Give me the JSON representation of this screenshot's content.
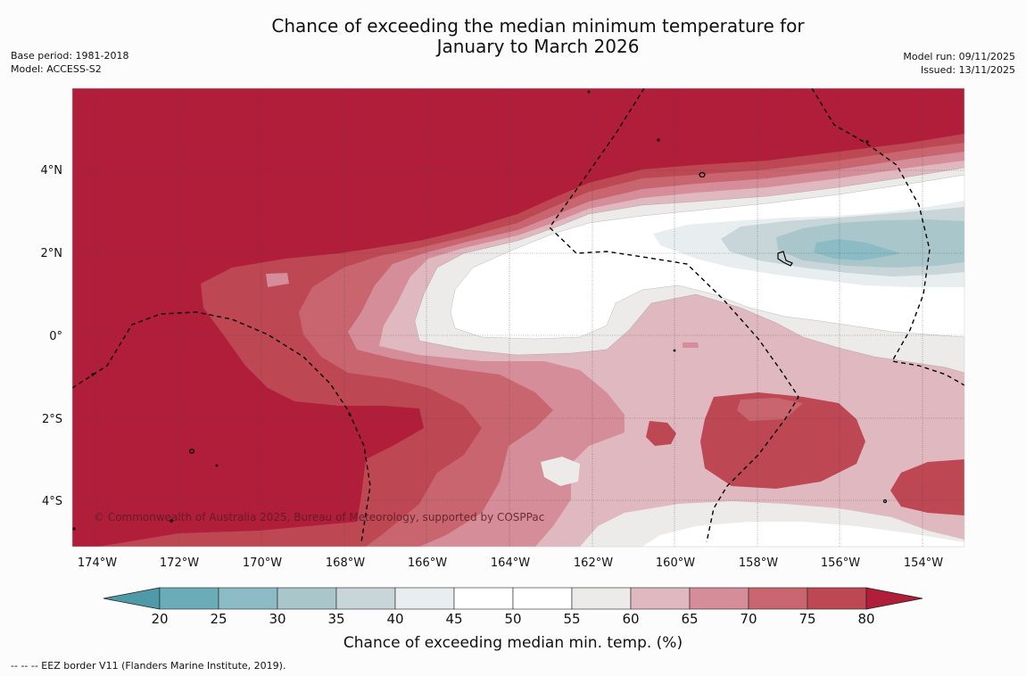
{
  "header": {
    "title_line1": "Chance of exceeding the median minimum temperature for",
    "title_line2": "January to March 2026",
    "base_period": "Base period: 1981-2018",
    "model": "Model: ACCESS-S2",
    "model_run": "Model run: 09/11/2025",
    "issued": "Issued: 13/11/2025"
  },
  "map": {
    "lon_ticks": [
      "174°W",
      "172°W",
      "170°W",
      "168°W",
      "166°W",
      "164°W",
      "162°W",
      "160°W",
      "158°W",
      "156°W",
      "154°W"
    ],
    "lat_ticks": [
      "4°N",
      "2°N",
      "0°",
      "2°S",
      "4°S"
    ],
    "copyright": "© Commonwealth of Australia 2025, Bureau of Meteorology, supported by COSPPac"
  },
  "colorbar": {
    "ticks": [
      "20",
      "25",
      "30",
      "35",
      "40",
      "45",
      "50",
      "55",
      "60",
      "65",
      "70",
      "75",
      "80"
    ],
    "colors": [
      "#6aacb8",
      "#8bbbc4",
      "#a9c6cb",
      "#c8d6d9",
      "#e8eef0",
      "#ffffff",
      "#ffffff",
      "#ecebe9",
      "#e0b8bf",
      "#d48d99",
      "#c8656f",
      "#bd4752"
    ],
    "low_color": "#4f9aa9",
    "high_color": "#b01e3a",
    "label": "Chance of exceeding median min. temp. (%)"
  },
  "footnote": "--  --  -- EEZ border V11 (Flanders Marine Institute, 2019)."
}
